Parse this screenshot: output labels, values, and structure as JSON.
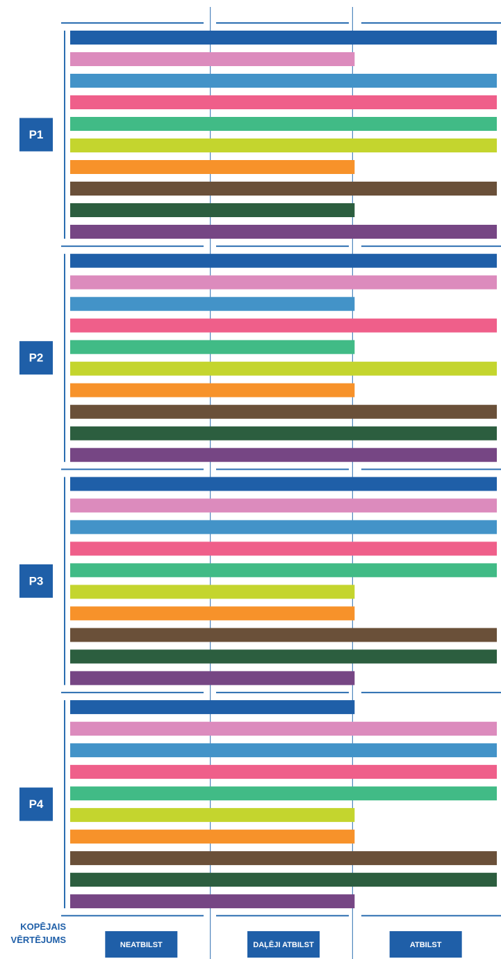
{
  "chart_data": {
    "type": "bar",
    "orientation": "horizontal",
    "xlabel": "KOPĒJAIS VĒRTĒJUMS",
    "xlim": [
      0,
      3
    ],
    "xticks": [
      {
        "value": 1,
        "label": "NEATBILST"
      },
      {
        "value": 2,
        "label": "DAĻĒJI ATBILST"
      },
      {
        "value": 3,
        "label": "ATBILST"
      }
    ],
    "colors": [
      "#1f5fa8",
      "#dc8bbd",
      "#4393c8",
      "#ef5f8a",
      "#41bb86",
      "#c4d52e",
      "#f7922a",
      "#6a5039",
      "#2c5e3f",
      "#764684"
    ],
    "groups": [
      {
        "name": "P1",
        "values": [
          3,
          2,
          3,
          3,
          3,
          3,
          2,
          3,
          2,
          3
        ]
      },
      {
        "name": "P2",
        "values": [
          3,
          3,
          2,
          3,
          2,
          3,
          2,
          3,
          3,
          3
        ]
      },
      {
        "name": "P3",
        "values": [
          3,
          3,
          3,
          3,
          3,
          2,
          2,
          3,
          3,
          2
        ]
      },
      {
        "name": "P4",
        "values": [
          2,
          3,
          3,
          3,
          3,
          2,
          2,
          3,
          3,
          2
        ]
      }
    ]
  }
}
